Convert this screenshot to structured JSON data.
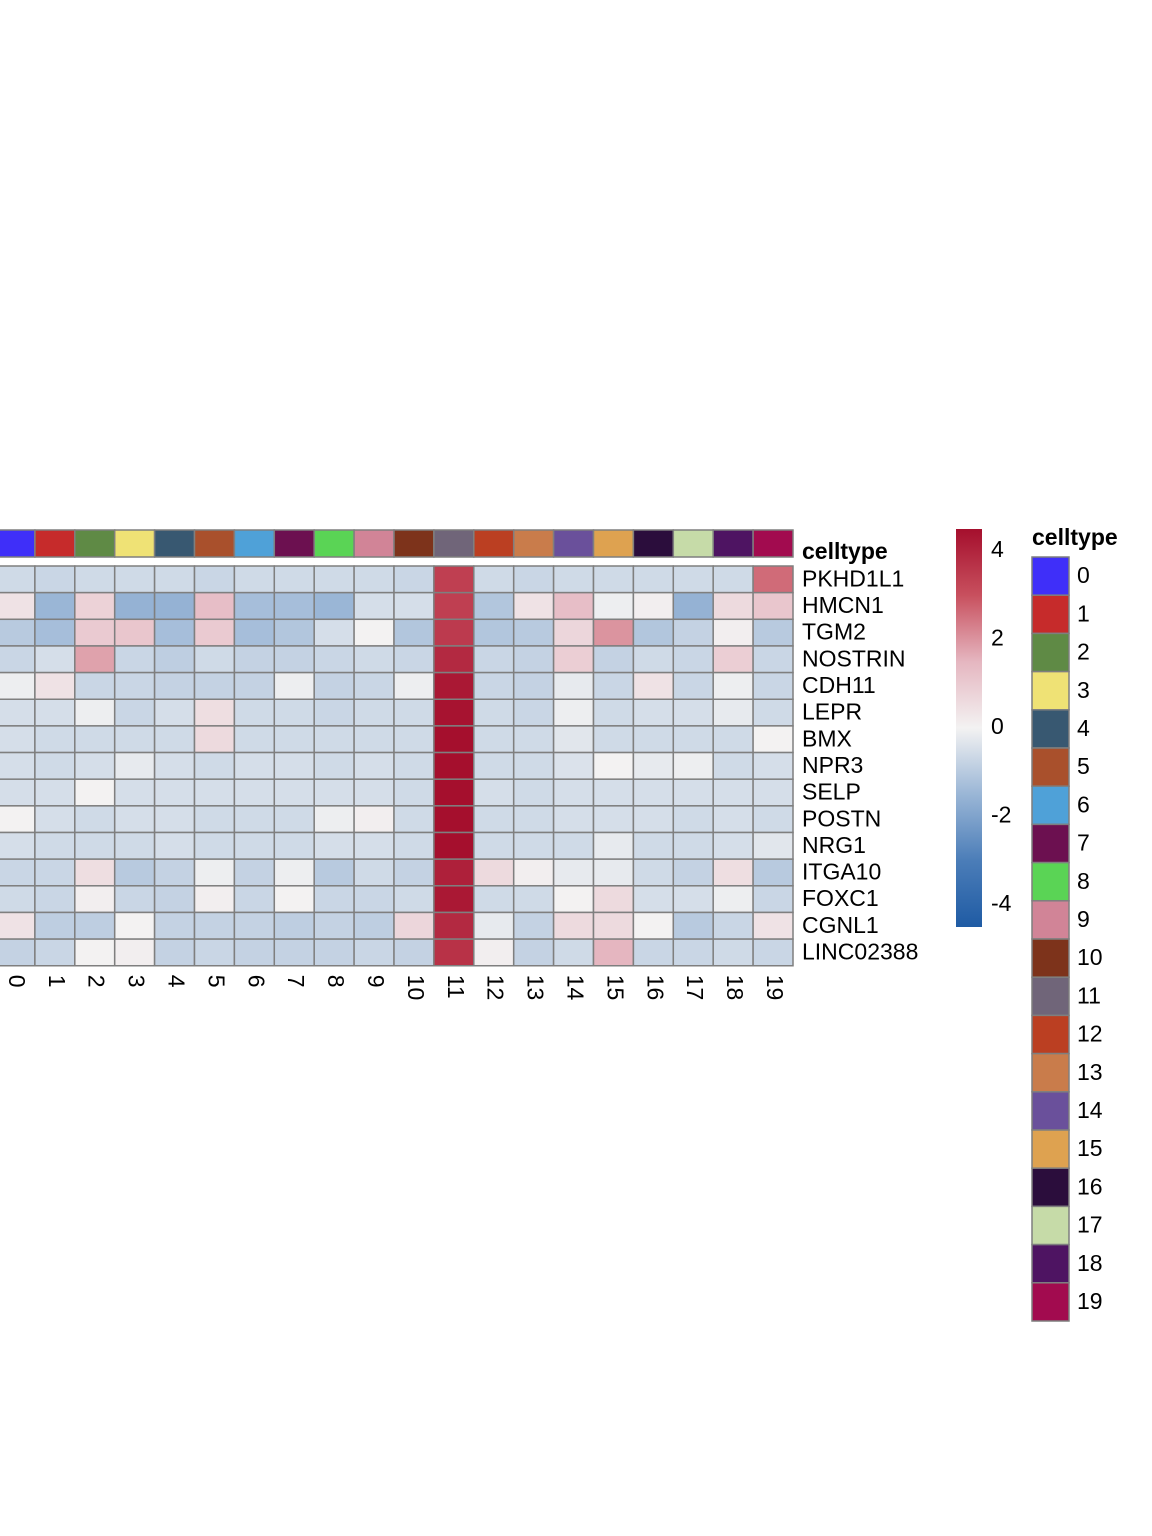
{
  "chart_data": {
    "type": "heatmap",
    "columns": [
      "0",
      "1",
      "2",
      "3",
      "4",
      "5",
      "6",
      "7",
      "8",
      "9",
      "10",
      "11",
      "12",
      "13",
      "14",
      "15",
      "16",
      "17",
      "18",
      "19"
    ],
    "rows": [
      "PKHD1L1",
      "HMCN1",
      "TGM2",
      "NOSTRIN",
      "CDH11",
      "LEPR",
      "BMX",
      "NPR3",
      "SELP",
      "POSTN",
      "NRG1",
      "ITGA10",
      "FOXC1",
      "CGNL1",
      "LINC02388"
    ],
    "values": [
      [
        -0.6,
        -0.7,
        -0.6,
        -0.6,
        -0.6,
        -0.7,
        -0.6,
        -0.6,
        -0.6,
        -0.6,
        -0.7,
        3.4,
        -0.6,
        -0.7,
        -0.6,
        -0.6,
        -0.6,
        -0.6,
        -0.6,
        2.6
      ],
      [
        0.4,
        -1.5,
        0.8,
        -1.6,
        -1.6,
        1.3,
        -1.3,
        -1.3,
        -1.5,
        -0.5,
        -0.5,
        3.4,
        -1.1,
        0.4,
        1.3,
        -0.1,
        0.1,
        -1.6,
        0.6,
        1.1
      ],
      [
        -1.0,
        -1.3,
        1.0,
        1.1,
        -1.3,
        1.0,
        -1.3,
        -1.1,
        -0.5,
        0.0,
        -1.1,
        3.5,
        -1.1,
        -1.0,
        0.7,
        2.0,
        -1.1,
        -0.8,
        0.1,
        -1.0
      ],
      [
        -0.7,
        -0.5,
        1.8,
        -0.7,
        -0.9,
        -0.6,
        -0.8,
        -0.8,
        -0.7,
        -0.6,
        -0.7,
        3.9,
        -0.7,
        -0.8,
        0.9,
        -0.8,
        -0.6,
        -0.7,
        0.9,
        -0.7
      ],
      [
        -0.1,
        0.4,
        -0.7,
        -0.7,
        -0.8,
        -0.8,
        -0.8,
        -0.1,
        -0.8,
        -0.7,
        -0.1,
        4.3,
        -0.7,
        -0.8,
        -0.2,
        -0.7,
        0.4,
        -0.7,
        -0.1,
        -0.7
      ],
      [
        -0.5,
        -0.5,
        -0.1,
        -0.7,
        -0.5,
        0.5,
        -0.6,
        -0.6,
        -0.7,
        -0.6,
        -0.6,
        4.4,
        -0.6,
        -0.7,
        -0.1,
        -0.6,
        -0.5,
        -0.5,
        -0.2,
        -0.6
      ],
      [
        -0.5,
        -0.6,
        -0.6,
        -0.6,
        -0.6,
        0.6,
        -0.6,
        -0.6,
        -0.6,
        -0.6,
        -0.6,
        4.5,
        -0.6,
        -0.6,
        -0.3,
        -0.6,
        -0.6,
        -0.6,
        -0.6,
        0.0
      ],
      [
        -0.5,
        -0.6,
        -0.5,
        -0.2,
        -0.5,
        -0.6,
        -0.5,
        -0.5,
        -0.6,
        -0.5,
        -0.6,
        4.5,
        -0.6,
        -0.6,
        -0.4,
        0.0,
        -0.2,
        -0.1,
        -0.6,
        -0.5
      ],
      [
        -0.5,
        -0.5,
        0.0,
        -0.5,
        -0.5,
        -0.5,
        -0.5,
        -0.5,
        -0.5,
        -0.5,
        -0.6,
        4.5,
        -0.5,
        -0.6,
        -0.5,
        -0.5,
        -0.5,
        -0.5,
        -0.5,
        -0.5
      ],
      [
        0.0,
        -0.5,
        -0.6,
        -0.5,
        -0.5,
        -0.6,
        -0.6,
        -0.6,
        -0.1,
        0.1,
        -0.6,
        4.5,
        -0.6,
        -0.6,
        -0.5,
        -0.5,
        -0.5,
        -0.6,
        -0.5,
        -0.6
      ],
      [
        -0.5,
        -0.6,
        -0.6,
        -0.6,
        -0.5,
        -0.6,
        -0.6,
        -0.6,
        -0.5,
        -0.5,
        -0.6,
        4.5,
        -0.6,
        -0.6,
        -0.6,
        -0.2,
        -0.6,
        -0.6,
        -0.5,
        -0.3
      ],
      [
        -0.7,
        -0.7,
        0.5,
        -1.0,
        -0.8,
        -0.1,
        -0.8,
        -0.1,
        -1.0,
        -0.6,
        -0.8,
        4.1,
        0.6,
        0.1,
        -0.2,
        -0.2,
        -0.6,
        -0.8,
        0.5,
        -1.0
      ],
      [
        -0.6,
        -0.7,
        0.1,
        -0.7,
        -0.8,
        0.1,
        -0.7,
        0.0,
        -0.7,
        -0.7,
        -0.6,
        4.3,
        -0.6,
        -0.6,
        0.0,
        0.6,
        -0.5,
        -0.5,
        -0.1,
        -0.7
      ],
      [
        0.4,
        -0.9,
        -0.9,
        0.0,
        -0.8,
        -0.8,
        -0.8,
        -0.9,
        -0.8,
        -0.9,
        0.7,
        3.9,
        -0.2,
        -0.8,
        0.6,
        0.6,
        0.0,
        -1.0,
        -0.7,
        0.4
      ],
      [
        -0.8,
        -0.7,
        0.0,
        0.1,
        -0.8,
        -0.7,
        -0.8,
        -0.8,
        -0.8,
        -0.7,
        -0.8,
        3.7,
        0.1,
        -0.8,
        -0.6,
        1.5,
        -0.7,
        -0.7,
        -0.6,
        -0.7
      ]
    ],
    "color_scale": {
      "min": -4.5,
      "max": 4.5,
      "stops": [
        "#1f5ba4",
        "#4b7db8",
        "#9ab6d6",
        "#f3f2f2",
        "#e5b6c0",
        "#c8505e",
        "#a50f2d"
      ],
      "ticks": [
        4,
        2,
        0,
        -2,
        -4
      ]
    },
    "annotation": {
      "title": "celltype",
      "legend_title": "celltype",
      "colors": [
        "#3f2ff9",
        "#c62b2b",
        "#5f8a45",
        "#efe275",
        "#385871",
        "#a9502c",
        "#4fa1d8",
        "#6c1050",
        "#5ad455",
        "#d18497",
        "#7d331b",
        "#706579",
        "#bb3f22",
        "#c97c4b",
        "#6a509b",
        "#dea250",
        "#2b0d3c",
        "#c6dba8",
        "#4e1462",
        "#a20b4f"
      ]
    }
  }
}
